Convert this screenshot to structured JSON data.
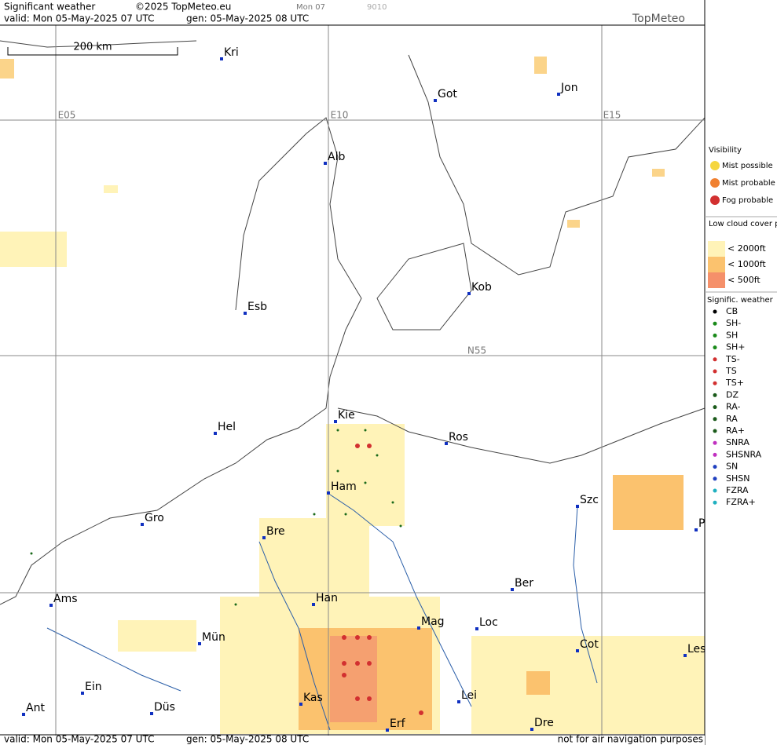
{
  "header": {
    "title": "Significant weather",
    "copyright": "©2025 TopMeteo.eu",
    "run": "Mon 07",
    "code": "9010",
    "valid": "valid:  Mon  05-May-2025  07 UTC",
    "gen": "gen: 05-May-2025 08 UTC",
    "logo": "TopMeteo"
  },
  "scale": "200 km",
  "grid_labels": [
    "E05",
    "E10",
    "E15",
    "N55"
  ],
  "cities": [
    {
      "label": "Kri"
    },
    {
      "label": "Got"
    },
    {
      "label": "Jon"
    },
    {
      "label": "Alb"
    },
    {
      "label": "Kob"
    },
    {
      "label": "Esb"
    },
    {
      "label": "Hel"
    },
    {
      "label": "Kie"
    },
    {
      "label": "Ros"
    },
    {
      "label": "Ham"
    },
    {
      "label": "Szc"
    },
    {
      "label": "P"
    },
    {
      "label": "Gro"
    },
    {
      "label": "Bre"
    },
    {
      "label": "Ber"
    },
    {
      "label": "Ams"
    },
    {
      "label": "Han"
    },
    {
      "label": "Mag"
    },
    {
      "label": "Loc"
    },
    {
      "label": "Cot"
    },
    {
      "label": "Les"
    },
    {
      "label": "Mün"
    },
    {
      "label": "Ein"
    },
    {
      "label": "Kas"
    },
    {
      "label": "Lei"
    },
    {
      "label": "Ant"
    },
    {
      "label": "Düs"
    },
    {
      "label": "Dre"
    },
    {
      "label": "Erf"
    }
  ],
  "legend": {
    "visibility": {
      "title": "Visibility",
      "items": [
        "Mist possible",
        "Mist probable",
        "Fog probable"
      ]
    },
    "low_cloud": {
      "title": "Low cloud cover probable",
      "items": [
        "< 2000ft",
        "< 1000ft",
        "<  500ft"
      ]
    },
    "weather": {
      "title": "Signific. weather",
      "items": [
        "CB",
        "SH-",
        "SH",
        "SH+",
        "TS-",
        "TS",
        "TS+",
        "DZ",
        "RA-",
        "RA",
        "RA+",
        "SNRA",
        "SHSNRA",
        "SN",
        "SHSN",
        "FZRA",
        "FZRA+"
      ]
    }
  },
  "footer": {
    "valid": "valid:  Mon  05-May-2025  07 UTC",
    "gen": "gen: 05-May-2025 08 UTC",
    "note": "not for air navigation purposes"
  }
}
